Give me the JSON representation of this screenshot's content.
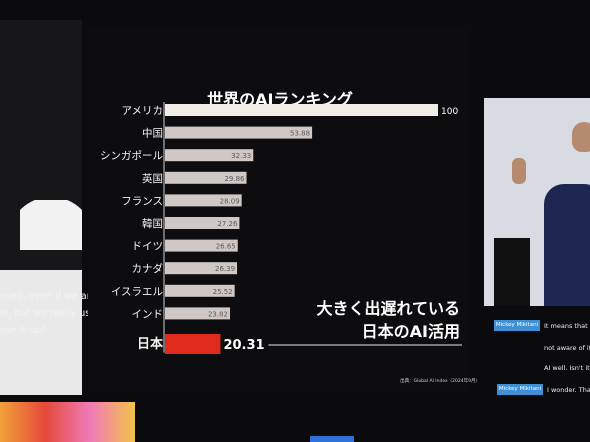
{
  "chart_data": {
    "type": "bar",
    "orientation": "horizontal",
    "title": "世界のAIランキング",
    "categories": [
      "アメリカ",
      "中国",
      "シンガポール",
      "英国",
      "フランス",
      "韓国",
      "ドイツ",
      "カナダ",
      "イスラエル",
      "インド",
      "日本"
    ],
    "values": [
      100,
      53.88,
      32.33,
      29.86,
      28.09,
      27.26,
      26.65,
      26.39,
      25.52,
      23.82,
      20.31
    ],
    "value_labels": [
      "100",
      "53.88",
      "32.33",
      "29.86",
      "28.09",
      "27.26",
      "26.65",
      "26.39",
      "25.52",
      "23.82",
      "20.31"
    ],
    "xlim": [
      0,
      100
    ],
    "bar_color": "#cfc8c4",
    "top_bar_color": "#f1ece6",
    "highlight_category": "日本",
    "highlight_color": "#e02a1c",
    "annotation_lines": [
      "大きく出遅れている",
      "日本のAI活用"
    ],
    "source": "出典：Global AI Index（2024年9月）"
  },
  "left_caption": [
    "used, even if we are",
    "el, but we really use",
    "use it up?"
  ],
  "subtitles": [
    {
      "speaker": "Mickey Mikitani",
      "text": "It means that there"
    },
    {
      "speaker": "",
      "text": "not aware of it, and"
    },
    {
      "speaker": "",
      "text": "AI well. Isn't it a big"
    },
    {
      "speaker": "Mickey Mikitani",
      "text": "I wonder. That's w"
    }
  ]
}
